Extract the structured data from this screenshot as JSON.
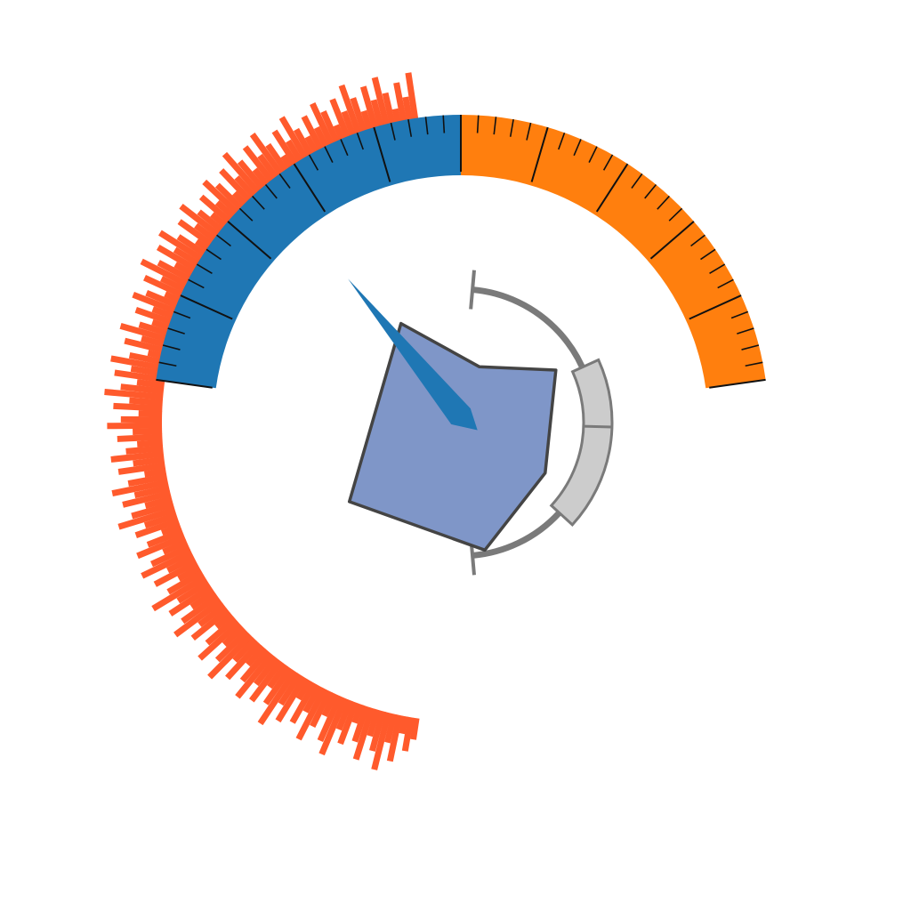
{
  "chart_data": {
    "type": "radial-gauge",
    "title": "",
    "gauge": {
      "segments": [
        {
          "name": "",
          "color": "#1f77b4",
          "from": 0,
          "to": 50
        },
        {
          "name": "",
          "color": "#ff7f0e",
          "from": 50,
          "to": 100
        }
      ],
      "range": [
        0,
        100
      ],
      "major_tick_step": 10,
      "minor_tick_step": 2,
      "tick_labels": []
    },
    "needle": {
      "color": "#1f77b4",
      "value": 26
    },
    "histogram": {
      "color": "#ff5a2c",
      "note": "",
      "values": [
        0.22,
        0.35,
        0.18,
        0.48,
        0.3,
        0.6,
        0.42,
        0.28,
        0.55,
        0.38,
        0.2,
        0.45,
        0.32,
        0.62,
        0.5,
        0.25,
        0.4,
        0.58,
        0.3,
        0.46,
        0.22,
        0.52,
        0.36,
        0.64,
        0.44,
        0.28,
        0.5,
        0.34,
        0.56,
        0.4,
        0.24,
        0.48,
        0.3,
        0.6,
        0.42,
        0.26,
        0.54,
        0.38,
        0.2,
        0.46,
        0.32,
        0.58,
        0.44,
        0.28,
        0.5,
        0.36,
        0.62,
        0.4,
        0.24,
        0.48,
        0.3,
        0.56,
        0.42,
        0.26,
        0.52,
        0.38,
        0.2,
        0.46,
        0.34,
        0.6,
        0.44,
        0.28,
        0.5,
        0.36,
        0.58,
        0.4,
        0.22,
        0.48,
        0.32,
        0.54,
        0.38,
        0.26,
        0.46,
        0.3,
        0.56,
        0.42,
        0.24,
        0.5,
        0.34,
        0.6,
        0.44,
        0.28,
        0.52,
        0.36,
        0.58,
        0.4,
        0.22,
        0.48,
        0.32,
        0.56,
        0.38,
        0.26,
        0.46,
        0.3,
        0.54,
        0.42,
        0.24,
        0.5,
        0.34,
        0.6,
        0.44,
        0.28,
        0.52,
        0.36,
        0.58,
        0.4,
        0.22,
        0.48,
        0.32,
        0.56,
        0.38,
        0.26,
        0.46,
        0.3,
        0.54,
        0.42,
        0.24,
        0.5,
        0.34,
        0.6,
        0.44,
        0.28,
        0.52,
        0.36,
        0.58,
        0.4,
        0.22,
        0.48,
        0.32,
        0.56,
        0.38,
        0.26,
        0.46,
        0.3,
        0.54,
        0.42,
        0.24,
        0.5,
        0.34,
        0.6,
        0.44,
        0.28,
        0.52,
        0.36,
        0.58,
        0.4,
        0.22,
        0.48,
        0.32,
        0.56
      ]
    },
    "radar": {
      "color": "#7f96c8",
      "stroke": "#444444",
      "axes": 6,
      "values": [
        0.55,
        0.82,
        0.9,
        0.62,
        0.68,
        0.6
      ]
    },
    "range_bracket": {
      "color": "#7a7a7a",
      "highlight_color": "#cccccc",
      "span": [
        0,
        100
      ],
      "highlight": [
        35,
        75
      ]
    }
  }
}
